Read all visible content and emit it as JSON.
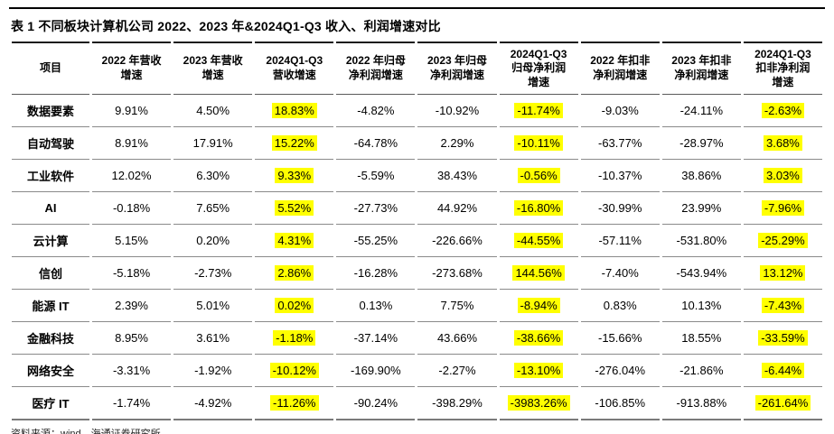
{
  "table": {
    "title": "表 1 不同板块计算机公司 2022、2023 年&2024Q1-Q3 收入、利润增速对比",
    "source": "资料来源：wind，海通证券研究所",
    "highlight_color": "#ffff00",
    "highlight_value_columns": [
      2,
      5,
      8
    ],
    "columns": [
      "项目",
      "2022 年营收\n增速",
      "2023 年营收\n增速",
      "2024Q1-Q3\n营收增速",
      "2022 年归母\n净利润增速",
      "2023 年归母\n净利润增速",
      "2024Q1-Q3\n归母净利润\n增速",
      "2022 年扣非\n净利润增速",
      "2023 年扣非\n净利润增速",
      "2024Q1-Q3\n扣非净利润\n增速"
    ],
    "rows": [
      {
        "label": "数据要素",
        "values": [
          "9.91%",
          "4.50%",
          "18.83%",
          "-4.82%",
          "-10.92%",
          "-11.74%",
          "-9.03%",
          "-24.11%",
          "-2.63%"
        ]
      },
      {
        "label": "自动驾驶",
        "values": [
          "8.91%",
          "17.91%",
          "15.22%",
          "-64.78%",
          "2.29%",
          "-10.11%",
          "-63.77%",
          "-28.97%",
          "3.68%"
        ]
      },
      {
        "label": "工业软件",
        "values": [
          "12.02%",
          "6.30%",
          "9.33%",
          "-5.59%",
          "38.43%",
          "-0.56%",
          "-10.37%",
          "38.86%",
          "3.03%"
        ]
      },
      {
        "label": "AI",
        "values": [
          "-0.18%",
          "7.65%",
          "5.52%",
          "-27.73%",
          "44.92%",
          "-16.80%",
          "-30.99%",
          "23.99%",
          "-7.96%"
        ]
      },
      {
        "label": "云计算",
        "values": [
          "5.15%",
          "0.20%",
          "4.31%",
          "-55.25%",
          "-226.66%",
          "-44.55%",
          "-57.11%",
          "-531.80%",
          "-25.29%"
        ]
      },
      {
        "label": "信创",
        "values": [
          "-5.18%",
          "-2.73%",
          "2.86%",
          "-16.28%",
          "-273.68%",
          "144.56%",
          "-7.40%",
          "-543.94%",
          "13.12%"
        ]
      },
      {
        "label": "能源 IT",
        "values": [
          "2.39%",
          "5.01%",
          "0.02%",
          "0.13%",
          "7.75%",
          "-8.94%",
          "0.83%",
          "10.13%",
          "-7.43%"
        ]
      },
      {
        "label": "金融科技",
        "values": [
          "8.95%",
          "3.61%",
          "-1.18%",
          "-37.14%",
          "43.66%",
          "-38.66%",
          "-15.66%",
          "18.55%",
          "-33.59%"
        ]
      },
      {
        "label": "网络安全",
        "values": [
          "-3.31%",
          "-1.92%",
          "-10.12%",
          "-169.90%",
          "-2.27%",
          "-13.10%",
          "-276.04%",
          "-21.86%",
          "-6.44%"
        ]
      },
      {
        "label": "医疗 IT",
        "values": [
          "-1.74%",
          "-4.92%",
          "-11.26%",
          "-90.24%",
          "-398.29%",
          "-3983.26%",
          "-106.85%",
          "-913.88%",
          "-261.64%"
        ]
      }
    ]
  }
}
